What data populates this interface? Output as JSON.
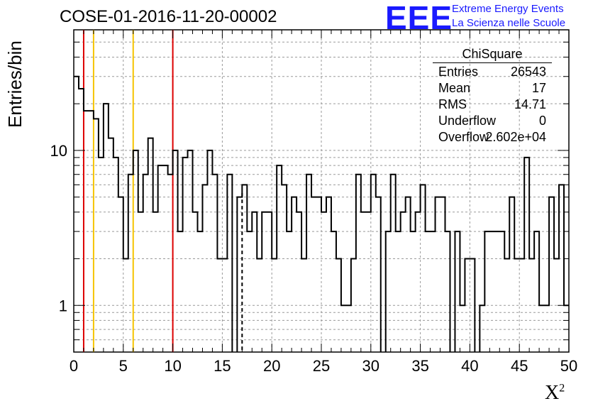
{
  "title": "COSE-01-2016-11-20-00002",
  "logo": {
    "mark": "EEE",
    "line1": "Extreme Energy Events",
    "line2": "La Scienza nelle Scuole"
  },
  "stats_box": {
    "title": "ChiSquare",
    "rows": [
      {
        "key": "Entries",
        "value": "26543"
      },
      {
        "key": "Mean",
        "value": "17"
      },
      {
        "key": "RMS",
        "value": "14.71"
      },
      {
        "key": "Underflow",
        "value": "0"
      },
      {
        "key": "Overflow",
        "value": "2.602e+04"
      }
    ]
  },
  "colors": {
    "histogram": "#000000",
    "red_lines": "#dd0000",
    "orange_lines": "#f5c400",
    "grid": "#9a9a9a",
    "logo": "#1a1aff"
  },
  "chart_data": {
    "type": "histogram",
    "title": "COSE-01-2016-11-20-00002",
    "xlabel": "X",
    "xlabel_sup": "2",
    "ylabel": "Entries/bin",
    "xlim": [
      0,
      50
    ],
    "ylim": [
      0.5,
      60
    ],
    "yscale": "log",
    "grid": true,
    "bin_width": 0.5,
    "xticks": [
      0,
      5,
      10,
      15,
      20,
      25,
      30,
      35,
      40,
      45,
      50
    ],
    "xtick_labels": [
      "0",
      "5",
      "10",
      "15",
      "20",
      "25",
      "30",
      "35",
      "40",
      "45",
      "50"
    ],
    "yticks": [
      1,
      10
    ],
    "ytick_labels": [
      "1",
      "10"
    ],
    "bin_contents": [
      30,
      25,
      18,
      18,
      16,
      9,
      20,
      12,
      9,
      5,
      2,
      7,
      10,
      4,
      7,
      12,
      4,
      8,
      8,
      7,
      10,
      3,
      9,
      10,
      4,
      3,
      6,
      10,
      7,
      2,
      2,
      7,
      0,
      5,
      6,
      3,
      4,
      2,
      4,
      4,
      2,
      8,
      6,
      3,
      5,
      4,
      2,
      7,
      5,
      5,
      4,
      5,
      3,
      2,
      1,
      1,
      2,
      7,
      4,
      4,
      7,
      5,
      0,
      3,
      7,
      3,
      4,
      5,
      3,
      4,
      6,
      3,
      3,
      5,
      5,
      3,
      0,
      3,
      1,
      2,
      2,
      0,
      1,
      3,
      3,
      3,
      3,
      2,
      5,
      2,
      2,
      9,
      2,
      3,
      1,
      1,
      5,
      2,
      6,
      1
    ],
    "vertical_lines": [
      {
        "x": 1,
        "color": "red",
        "style": "solid"
      },
      {
        "x": 2,
        "color": "orange",
        "style": "solid"
      },
      {
        "x": 6,
        "color": "orange",
        "style": "solid"
      },
      {
        "x": 10,
        "color": "red",
        "style": "solid"
      },
      {
        "x": 17,
        "color": "black",
        "style": "dashed"
      }
    ],
    "legend_placement": "top-right"
  }
}
